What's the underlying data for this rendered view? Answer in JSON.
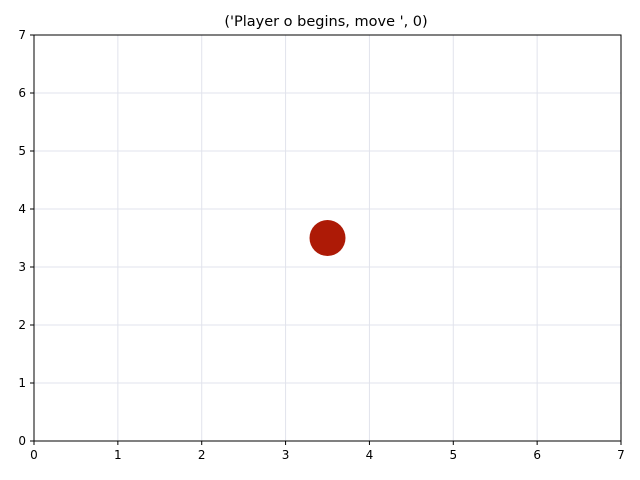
{
  "title": "('Player o begins, move ', 0)",
  "board": {
    "x_min": 0,
    "x_max": 7,
    "y_min": 0,
    "y_max": 7,
    "x_ticks": [
      "0",
      "1",
      "2",
      "3",
      "4",
      "5",
      "6",
      "7"
    ],
    "y_ticks": [
      "0",
      "1",
      "2",
      "3",
      "4",
      "5",
      "6",
      "7"
    ],
    "grid": true,
    "grid_color": "#e1e3ec",
    "pieces": [
      {
        "player": "o",
        "x": 3.5,
        "y": 3.5,
        "color": "#ad1a06"
      }
    ]
  }
}
